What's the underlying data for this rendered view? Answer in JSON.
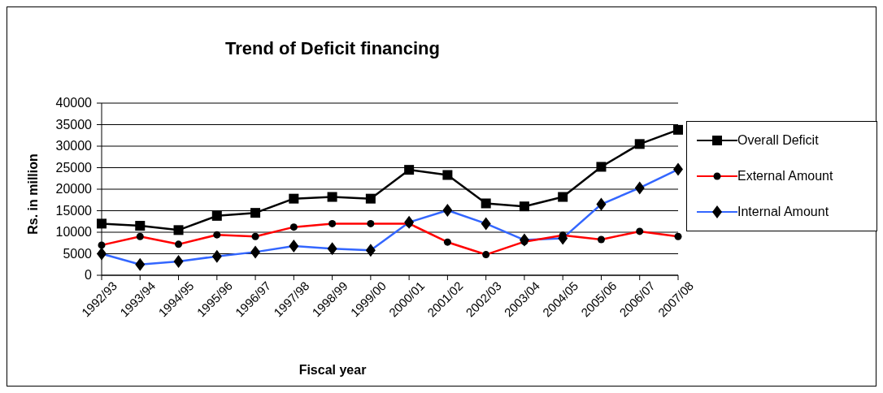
{
  "chart_data": {
    "type": "line",
    "title": "Trend of Deficit financing",
    "xlabel": "Fiscal year",
    "ylabel": "Rs. in million",
    "categories": [
      "1992/93",
      "1993/94",
      "1994/95",
      "1995/96",
      "1996/97",
      "1997/98",
      "1998/99",
      "1999/00",
      "2000/01",
      "2001/02",
      "2002/03",
      "2003/04",
      "2004/05",
      "2005/06",
      "2006/07",
      "2007/08"
    ],
    "series": [
      {
        "name": "Overall Deficit",
        "color": "#000000",
        "marker": "square",
        "values": [
          12000,
          11500,
          10500,
          13800,
          14500,
          17800,
          18200,
          17800,
          24500,
          23300,
          16700,
          16000,
          18200,
          25200,
          30500,
          33800
        ]
      },
      {
        "name": "External Amount",
        "color": "#ff0000",
        "marker": "circle",
        "values": [
          7000,
          9000,
          7200,
          9400,
          9000,
          11200,
          12000,
          12000,
          12000,
          7700,
          4800,
          7800,
          9300,
          8300,
          10200,
          9000
        ]
      },
      {
        "name": "Internal Amount",
        "color": "#3366ff",
        "marker": "diamond",
        "values": [
          5000,
          2500,
          3200,
          4400,
          5400,
          6800,
          6200,
          5800,
          12300,
          15100,
          12000,
          8200,
          8600,
          16500,
          20300,
          24600
        ]
      }
    ],
    "ylim": [
      0,
      40000
    ],
    "yticks": [
      0,
      5000,
      10000,
      15000,
      20000,
      25000,
      30000,
      35000,
      40000
    ],
    "grid": "y",
    "legend": "right"
  }
}
